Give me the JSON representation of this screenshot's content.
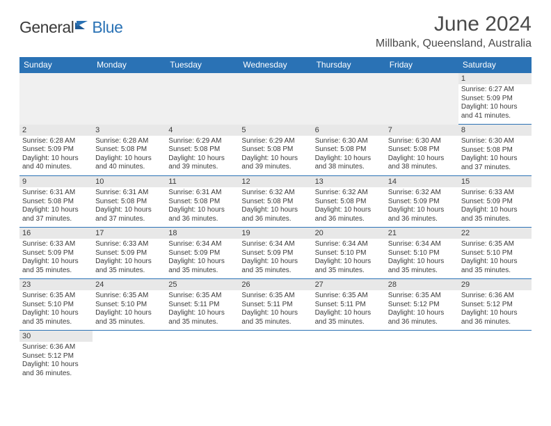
{
  "logo": {
    "general": "General",
    "blue": "Blue"
  },
  "title": "June 2024",
  "location": "Millbank, Queensland, Australia",
  "headers": [
    "Sunday",
    "Monday",
    "Tuesday",
    "Wednesday",
    "Thursday",
    "Friday",
    "Saturday"
  ],
  "colors": {
    "header_bg": "#2a72b5",
    "header_fg": "#ffffff",
    "daynum_bg": "#e8e8e8",
    "blank_bg": "#f0f0f0",
    "border": "#2a72b5",
    "text": "#3a3a3a",
    "logo_blue": "#2a72b5"
  },
  "weeks": [
    [
      null,
      null,
      null,
      null,
      null,
      null,
      {
        "n": "1",
        "sr": "Sunrise: 6:27 AM",
        "ss": "Sunset: 5:09 PM",
        "d1": "Daylight: 10 hours",
        "d2": "and 41 minutes."
      }
    ],
    [
      {
        "n": "2",
        "sr": "Sunrise: 6:28 AM",
        "ss": "Sunset: 5:09 PM",
        "d1": "Daylight: 10 hours",
        "d2": "and 40 minutes."
      },
      {
        "n": "3",
        "sr": "Sunrise: 6:28 AM",
        "ss": "Sunset: 5:08 PM",
        "d1": "Daylight: 10 hours",
        "d2": "and 40 minutes."
      },
      {
        "n": "4",
        "sr": "Sunrise: 6:29 AM",
        "ss": "Sunset: 5:08 PM",
        "d1": "Daylight: 10 hours",
        "d2": "and 39 minutes."
      },
      {
        "n": "5",
        "sr": "Sunrise: 6:29 AM",
        "ss": "Sunset: 5:08 PM",
        "d1": "Daylight: 10 hours",
        "d2": "and 39 minutes."
      },
      {
        "n": "6",
        "sr": "Sunrise: 6:30 AM",
        "ss": "Sunset: 5:08 PM",
        "d1": "Daylight: 10 hours",
        "d2": "and 38 minutes."
      },
      {
        "n": "7",
        "sr": "Sunrise: 6:30 AM",
        "ss": "Sunset: 5:08 PM",
        "d1": "Daylight: 10 hours",
        "d2": "and 38 minutes."
      },
      {
        "n": "8",
        "sr": "Sunrise: 6:30 AM",
        "ss": "Sunset: 5:08 PM",
        "d1": "Daylight: 10 hours",
        "d2": "and 37 minutes."
      }
    ],
    [
      {
        "n": "9",
        "sr": "Sunrise: 6:31 AM",
        "ss": "Sunset: 5:08 PM",
        "d1": "Daylight: 10 hours",
        "d2": "and 37 minutes."
      },
      {
        "n": "10",
        "sr": "Sunrise: 6:31 AM",
        "ss": "Sunset: 5:08 PM",
        "d1": "Daylight: 10 hours",
        "d2": "and 37 minutes."
      },
      {
        "n": "11",
        "sr": "Sunrise: 6:31 AM",
        "ss": "Sunset: 5:08 PM",
        "d1": "Daylight: 10 hours",
        "d2": "and 36 minutes."
      },
      {
        "n": "12",
        "sr": "Sunrise: 6:32 AM",
        "ss": "Sunset: 5:08 PM",
        "d1": "Daylight: 10 hours",
        "d2": "and 36 minutes."
      },
      {
        "n": "13",
        "sr": "Sunrise: 6:32 AM",
        "ss": "Sunset: 5:08 PM",
        "d1": "Daylight: 10 hours",
        "d2": "and 36 minutes."
      },
      {
        "n": "14",
        "sr": "Sunrise: 6:32 AM",
        "ss": "Sunset: 5:09 PM",
        "d1": "Daylight: 10 hours",
        "d2": "and 36 minutes."
      },
      {
        "n": "15",
        "sr": "Sunrise: 6:33 AM",
        "ss": "Sunset: 5:09 PM",
        "d1": "Daylight: 10 hours",
        "d2": "and 35 minutes."
      }
    ],
    [
      {
        "n": "16",
        "sr": "Sunrise: 6:33 AM",
        "ss": "Sunset: 5:09 PM",
        "d1": "Daylight: 10 hours",
        "d2": "and 35 minutes."
      },
      {
        "n": "17",
        "sr": "Sunrise: 6:33 AM",
        "ss": "Sunset: 5:09 PM",
        "d1": "Daylight: 10 hours",
        "d2": "and 35 minutes."
      },
      {
        "n": "18",
        "sr": "Sunrise: 6:34 AM",
        "ss": "Sunset: 5:09 PM",
        "d1": "Daylight: 10 hours",
        "d2": "and 35 minutes."
      },
      {
        "n": "19",
        "sr": "Sunrise: 6:34 AM",
        "ss": "Sunset: 5:09 PM",
        "d1": "Daylight: 10 hours",
        "d2": "and 35 minutes."
      },
      {
        "n": "20",
        "sr": "Sunrise: 6:34 AM",
        "ss": "Sunset: 5:10 PM",
        "d1": "Daylight: 10 hours",
        "d2": "and 35 minutes."
      },
      {
        "n": "21",
        "sr": "Sunrise: 6:34 AM",
        "ss": "Sunset: 5:10 PM",
        "d1": "Daylight: 10 hours",
        "d2": "and 35 minutes."
      },
      {
        "n": "22",
        "sr": "Sunrise: 6:35 AM",
        "ss": "Sunset: 5:10 PM",
        "d1": "Daylight: 10 hours",
        "d2": "and 35 minutes."
      }
    ],
    [
      {
        "n": "23",
        "sr": "Sunrise: 6:35 AM",
        "ss": "Sunset: 5:10 PM",
        "d1": "Daylight: 10 hours",
        "d2": "and 35 minutes."
      },
      {
        "n": "24",
        "sr": "Sunrise: 6:35 AM",
        "ss": "Sunset: 5:10 PM",
        "d1": "Daylight: 10 hours",
        "d2": "and 35 minutes."
      },
      {
        "n": "25",
        "sr": "Sunrise: 6:35 AM",
        "ss": "Sunset: 5:11 PM",
        "d1": "Daylight: 10 hours",
        "d2": "and 35 minutes."
      },
      {
        "n": "26",
        "sr": "Sunrise: 6:35 AM",
        "ss": "Sunset: 5:11 PM",
        "d1": "Daylight: 10 hours",
        "d2": "and 35 minutes."
      },
      {
        "n": "27",
        "sr": "Sunrise: 6:35 AM",
        "ss": "Sunset: 5:11 PM",
        "d1": "Daylight: 10 hours",
        "d2": "and 35 minutes."
      },
      {
        "n": "28",
        "sr": "Sunrise: 6:35 AM",
        "ss": "Sunset: 5:12 PM",
        "d1": "Daylight: 10 hours",
        "d2": "and 36 minutes."
      },
      {
        "n": "29",
        "sr": "Sunrise: 6:36 AM",
        "ss": "Sunset: 5:12 PM",
        "d1": "Daylight: 10 hours",
        "d2": "and 36 minutes."
      }
    ],
    [
      {
        "n": "30",
        "sr": "Sunrise: 6:36 AM",
        "ss": "Sunset: 5:12 PM",
        "d1": "Daylight: 10 hours",
        "d2": "and 36 minutes."
      },
      null,
      null,
      null,
      null,
      null,
      null
    ]
  ]
}
